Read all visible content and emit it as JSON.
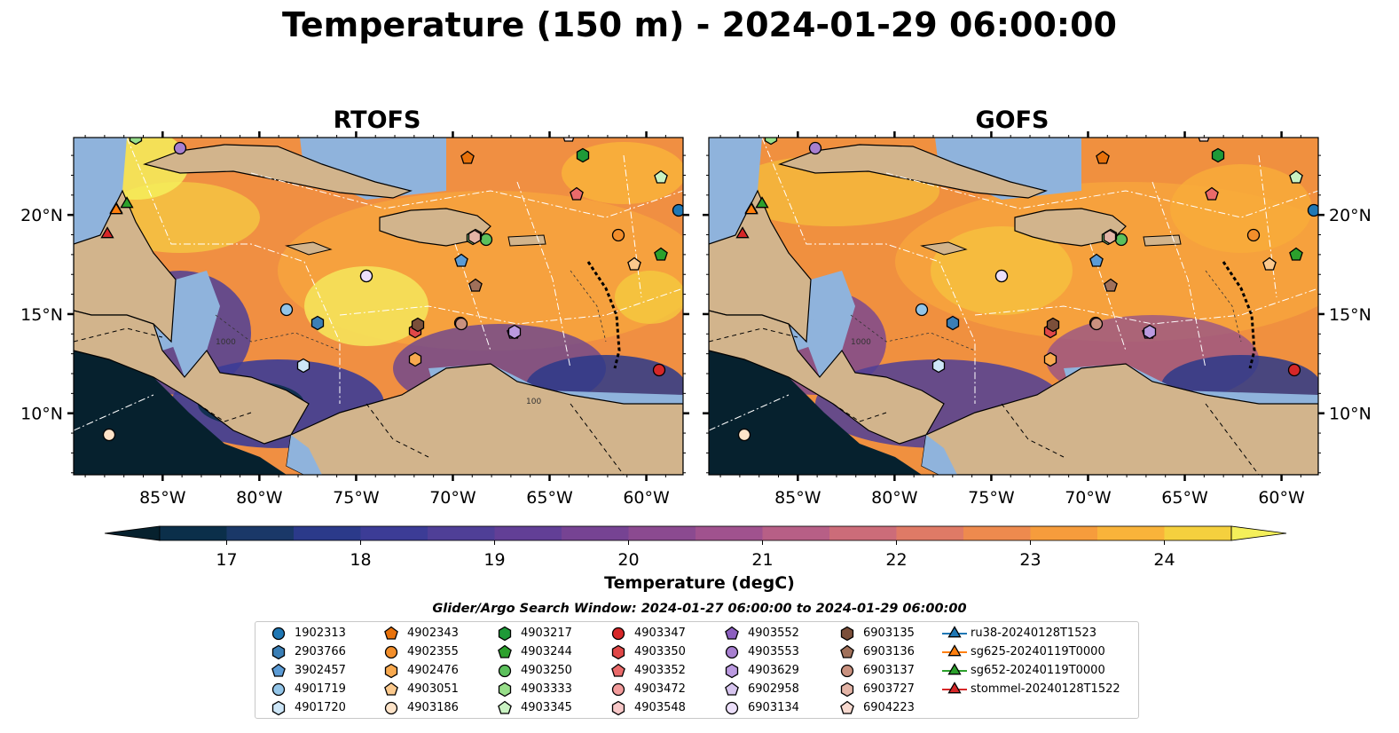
{
  "title": "Temperature (150 m) - 2024-01-29 06:00:00",
  "panels": [
    {
      "title": "RTOFS"
    },
    {
      "title": "GOFS"
    }
  ],
  "lat_ticks": [
    "20°N",
    "15°N",
    "10°N"
  ],
  "lon_ticks": [
    "85°W",
    "80°W",
    "75°W",
    "70°W",
    "65°W",
    "60°W"
  ],
  "contour_labels": [
    "1000",
    "100"
  ],
  "colorbar": {
    "label": "Temperature (degC)",
    "ticks": [
      "17",
      "18",
      "19",
      "20",
      "21",
      "22",
      "23",
      "24"
    ],
    "range": [
      16.5,
      24.5
    ],
    "step": 0.5,
    "extend": "both",
    "colors": [
      "#06212e",
      "#0b2f4a",
      "#1a3868",
      "#2b3a8a",
      "#3c3c96",
      "#4f3f97",
      "#623f96",
      "#764393",
      "#8b4a90",
      "#a0528e",
      "#b75f86",
      "#cc6c79",
      "#df7a66",
      "#ee8a4e",
      "#f69c3c",
      "#f9b33a",
      "#f5d03e",
      "#f4ef5a"
    ]
  },
  "search_window": "Glider/Argo Search Window: 2024-01-27 06:00:00 to 2024-01-29 06:00:00",
  "map_colors": {
    "land": "#d2b48c",
    "shallow": "#8fb3dc"
  },
  "legend": {
    "columns": [
      [
        {
          "label": "1902313",
          "marker": "circle",
          "color": "#1f77b4"
        },
        {
          "label": "2903766",
          "marker": "hexagon",
          "color": "#3b7fb6"
        },
        {
          "label": "3902457",
          "marker": "pentagon",
          "color": "#5b9bd5"
        },
        {
          "label": "4901719",
          "marker": "circle",
          "color": "#93c5e8"
        },
        {
          "label": "4901720",
          "marker": "hexagon",
          "color": "#cde6f7"
        }
      ],
      [
        {
          "label": "4902343",
          "marker": "pentagon",
          "color": "#e8710a"
        },
        {
          "label": "4902355",
          "marker": "circle",
          "color": "#f28e2b"
        },
        {
          "label": "4902476",
          "marker": "hexagon",
          "color": "#f8a94f"
        },
        {
          "label": "4903051",
          "marker": "pentagon",
          "color": "#fbc98d"
        },
        {
          "label": "4903186",
          "marker": "circle",
          "color": "#fde3c8"
        }
      ],
      [
        {
          "label": "4903217",
          "marker": "hexagon",
          "color": "#1e9a38"
        },
        {
          "label": "4903244",
          "marker": "pentagon",
          "color": "#2ca02c"
        },
        {
          "label": "4903250",
          "marker": "circle",
          "color": "#5cc05c"
        },
        {
          "label": "4903333",
          "marker": "hexagon",
          "color": "#98df8a"
        },
        {
          "label": "4903345",
          "marker": "pentagon",
          "color": "#c9f2c2"
        }
      ],
      [
        {
          "label": "4903347",
          "marker": "circle",
          "color": "#d62728"
        },
        {
          "label": "4903350",
          "marker": "hexagon",
          "color": "#e04848"
        },
        {
          "label": "4903352",
          "marker": "pentagon",
          "color": "#ea6a6a"
        },
        {
          "label": "4903472",
          "marker": "circle",
          "color": "#f29b9b"
        },
        {
          "label": "4903548",
          "marker": "hexagon",
          "color": "#f8c8c8"
        }
      ],
      [
        {
          "label": "4903552",
          "marker": "pentagon",
          "color": "#8c5fbf"
        },
        {
          "label": "4903553",
          "marker": "circle",
          "color": "#a77fd0"
        },
        {
          "label": "4903629",
          "marker": "hexagon",
          "color": "#bb9ae0"
        },
        {
          "label": "6902958",
          "marker": "pentagon",
          "color": "#d6c4ee"
        },
        {
          "label": "6903134",
          "marker": "circle",
          "color": "#ecdffa"
        }
      ],
      [
        {
          "label": "6903135",
          "marker": "hexagon",
          "color": "#7b4f3a"
        },
        {
          "label": "6903136",
          "marker": "pentagon",
          "color": "#a0705a"
        },
        {
          "label": "6903137",
          "marker": "circle",
          "color": "#c9917f"
        },
        {
          "label": "6903727",
          "marker": "hexagon",
          "color": "#e3b4a6"
        },
        {
          "label": "6904223",
          "marker": "pentagon",
          "color": "#f7d9cf"
        }
      ],
      [
        {
          "label": "ru38-20240128T1523",
          "marker": "triangle-line",
          "color": "#1f77b4"
        },
        {
          "label": "sg625-20240119T0000",
          "marker": "triangle-line",
          "color": "#ff7f0e"
        },
        {
          "label": "sg652-20240119T0000",
          "marker": "triangle-line",
          "color": "#2ca02c"
        },
        {
          "label": "stommel-20240128T1522",
          "marker": "triangle-line",
          "color": "#d62728"
        }
      ]
    ]
  }
}
